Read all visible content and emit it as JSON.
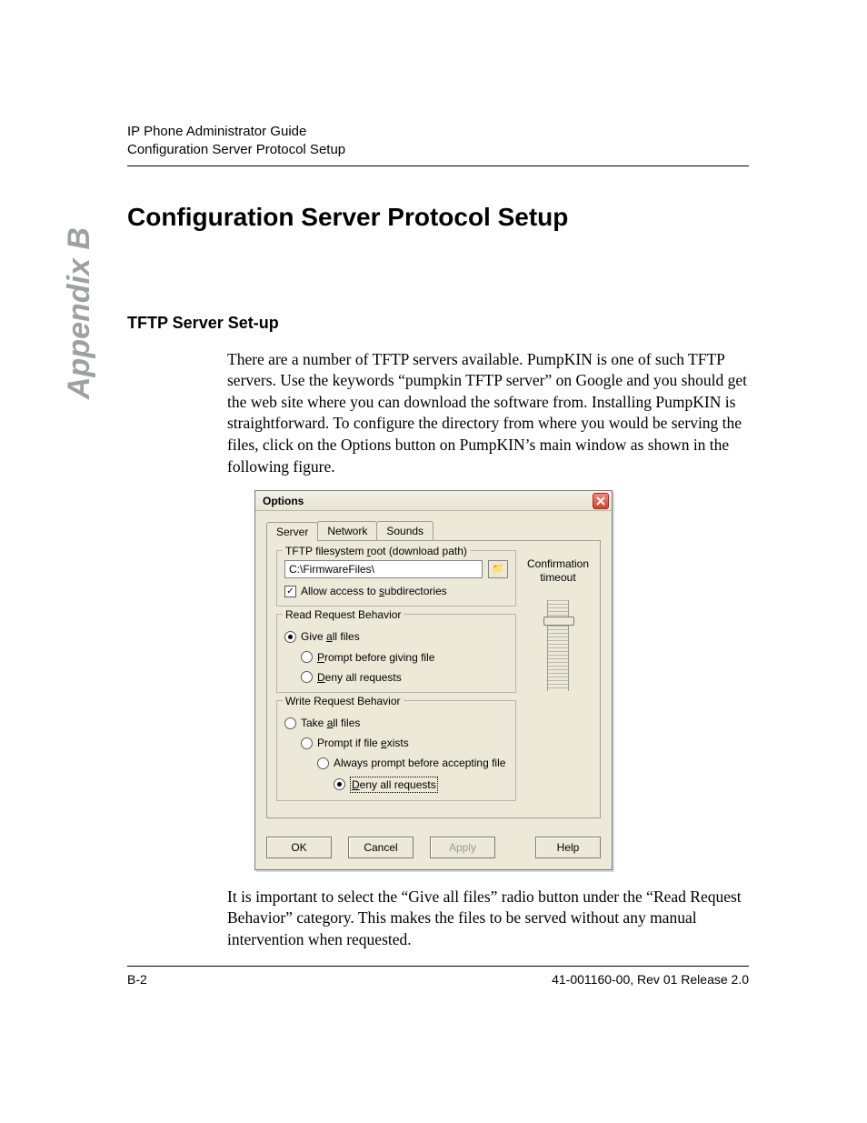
{
  "header": {
    "line1": "IP Phone Administrator Guide",
    "line2": "Configuration Server Protocol Setup"
  },
  "sidebar": {
    "label": "Appendix B"
  },
  "title": "Configuration Server Protocol Setup",
  "subtitle": "TFTP Server Set-up",
  "para1": "There are a number of TFTP servers available. PumpKIN is one of such TFTP servers. Use the keywords “pumpkin TFTP server” on Google and you should get the web site where you can download the software from. Installing PumpKIN is straightforward. To configure the directory from where you would be serving the files, click on the Options button on PumpKIN’s main window as shown in the following figure.",
  "para2": "It is important to select the “Give all files” radio button under the “Read Request Behavior” category. This makes the files to be served without any manual intervention when requested.",
  "dialog": {
    "title": "Options",
    "tabs": [
      "Server",
      "Network",
      "Sounds"
    ],
    "active_tab_index": 0,
    "root_group": {
      "legend": "TFTP filesystem root (download path)",
      "legend_key": "r",
      "path": "C:\\FirmwareFiles\\",
      "browse_icon": "folder-open-icon",
      "allow_sub_label": "Allow access to subdirectories",
      "allow_sub_key": "s",
      "allow_sub_checked": true
    },
    "read_group": {
      "legend": "Read Request Behavior",
      "options": [
        {
          "label": "Give all files",
          "key": "a",
          "selected": true,
          "indent": 0
        },
        {
          "label": "Prompt before giving file",
          "key": "P",
          "selected": false,
          "indent": 1
        },
        {
          "label": "Deny all requests",
          "key": "D",
          "selected": false,
          "indent": 1
        }
      ]
    },
    "write_group": {
      "legend": "Write Request Behavior",
      "options": [
        {
          "label": "Take all files",
          "key": "a",
          "selected": false,
          "indent": 0
        },
        {
          "label": "Prompt if file exists",
          "key": "e",
          "selected": false,
          "indent": 1
        },
        {
          "label": "Always prompt before accepting file",
          "key": "",
          "selected": false,
          "indent": 2
        },
        {
          "label": "Deny all requests",
          "key": "D",
          "selected": true,
          "indent": 3,
          "focused": true
        }
      ]
    },
    "confirmation_label": "Confirmation timeout",
    "buttons": {
      "ok": "OK",
      "cancel": "Cancel",
      "apply": "Apply",
      "help": "Help",
      "apply_disabled": true
    }
  },
  "footer": {
    "left": "B-2",
    "right": "41-001160-00, Rev 01 Release 2.0"
  }
}
